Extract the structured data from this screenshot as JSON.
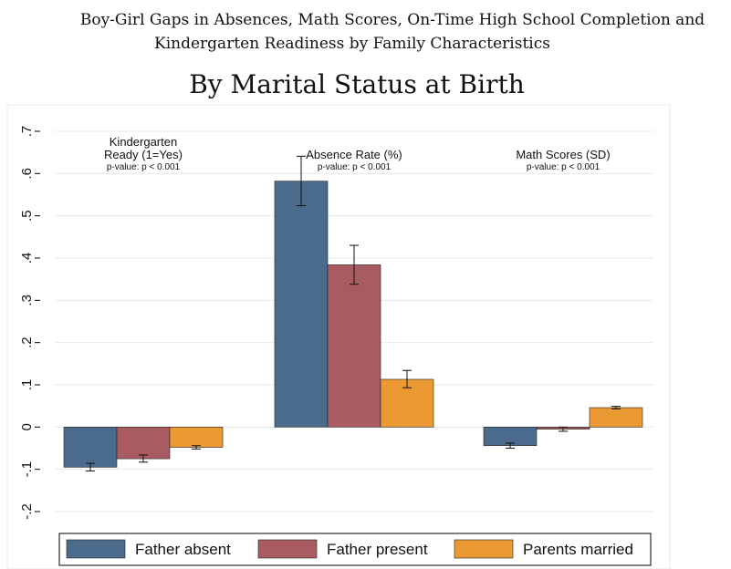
{
  "chart_data": {
    "type": "bar",
    "title_lines": [
      "Boy-Girl Gaps in Absences, Math Scores, On-Time High School Completion and",
      "Kindergarten Readiness by Family Characteristics"
    ],
    "subtitle": "By Marital Status at Birth",
    "ylim": [
      -0.2,
      0.7
    ],
    "yticks": [
      -0.2,
      -0.1,
      0,
      0.1,
      0.2,
      0.3,
      0.4,
      0.5,
      0.6,
      0.7
    ],
    "ytick_labels": [
      "-.2",
      "-.1",
      "0",
      ".1",
      ".2",
      ".3",
      ".4",
      ".5",
      ".6",
      ".7"
    ],
    "grid": true,
    "legend_position": "bottom",
    "groups": [
      {
        "label_lines": [
          "Kindergarten",
          "Ready (1=Yes)"
        ],
        "pvalue": "p-value: p < 0.001"
      },
      {
        "label_lines": [
          "Absence Rate (%)"
        ],
        "pvalue": "p-value: p < 0.001"
      },
      {
        "label_lines": [
          "Math Scores (SD)"
        ],
        "pvalue": "p-value: p < 0.001"
      }
    ],
    "series": [
      {
        "name": "Father absent",
        "color": "#4a6b8c",
        "values": [
          -0.095,
          0.582,
          -0.044
        ],
        "ci_low": [
          -0.104,
          0.524,
          -0.05
        ],
        "ci_high": [
          -0.086,
          0.641,
          -0.038
        ]
      },
      {
        "name": "Father present",
        "color": "#a85b60",
        "values": [
          -0.075,
          0.384,
          -0.005
        ],
        "ci_low": [
          -0.083,
          0.338,
          -0.01
        ],
        "ci_high": [
          -0.066,
          0.43,
          0.0
        ]
      },
      {
        "name": "Parents married",
        "color": "#eb9a33",
        "values": [
          -0.048,
          0.113,
          0.046
        ],
        "ci_low": [
          -0.052,
          0.093,
          0.043
        ],
        "ci_high": [
          -0.044,
          0.134,
          0.049
        ]
      }
    ]
  }
}
